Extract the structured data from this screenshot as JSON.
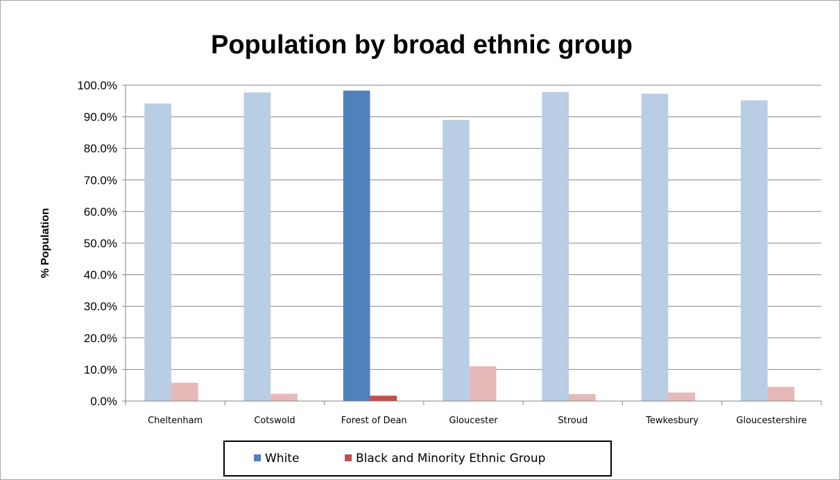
{
  "chart_data": {
    "type": "bar",
    "title": "Population by broad ethnic group",
    "xlabel": "",
    "ylabel": "% Population",
    "ylim": [
      0,
      100
    ],
    "ytick_step": 10,
    "ytick_format": "0.0%",
    "grid": true,
    "legend_position": "bottom",
    "categories": [
      "Cheltenham",
      "Cotswold",
      "Forest of Dean",
      "Gloucester",
      "Stroud",
      "Tewkesbury",
      "Gloucestershire"
    ],
    "highlighted_category": "Forest of Dean",
    "series": [
      {
        "name": "White",
        "values": [
          94.2,
          97.7,
          98.3,
          89.0,
          97.8,
          97.3,
          95.2
        ],
        "color": "#4f81bd",
        "muted_color": "#b9cde5"
      },
      {
        "name": "Black and Minority Ethnic Group",
        "values": [
          5.8,
          2.3,
          1.7,
          11.0,
          2.2,
          2.7,
          4.5
        ],
        "color": "#c0504d",
        "muted_color": "#e6b9b8"
      }
    ]
  }
}
